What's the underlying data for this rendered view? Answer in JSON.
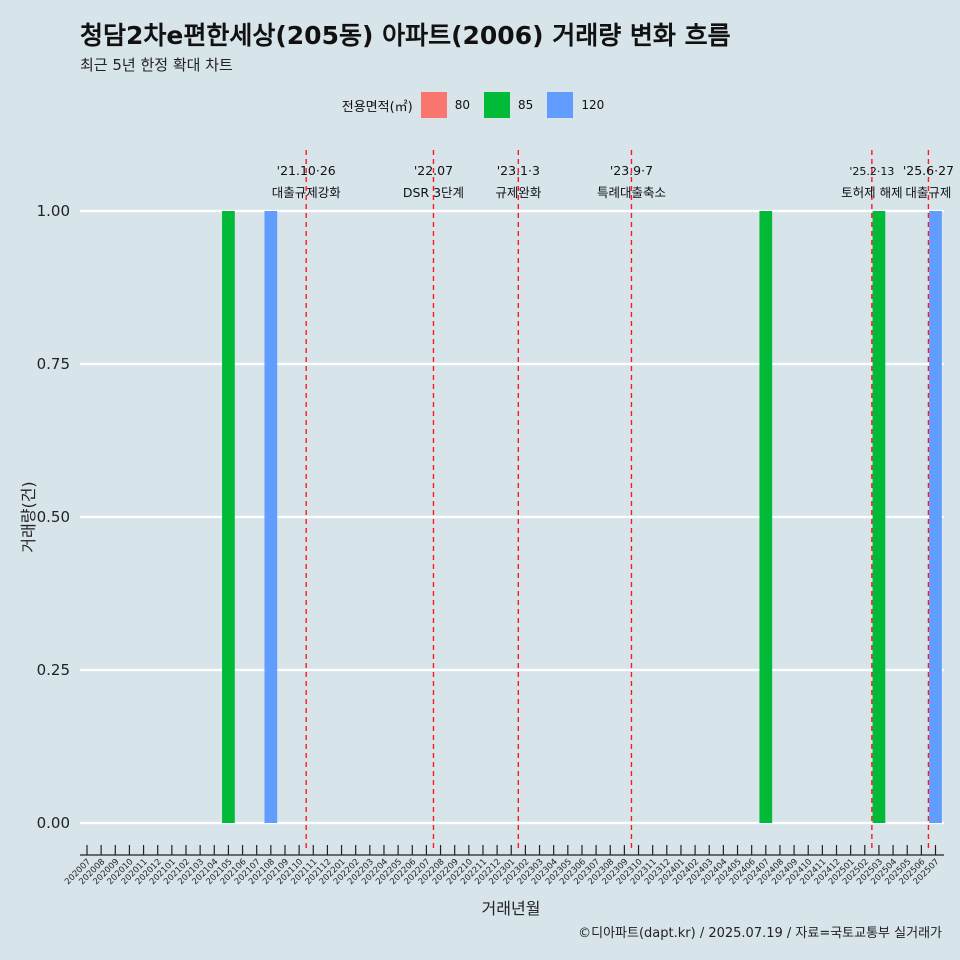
{
  "chart_data": {
    "type": "bar",
    "title": "청담2차e편한세상(205동) 아파트(2006) 거래량 변화 흐름",
    "subtitle": "최근 5년 한정 확대 차트",
    "xlabel": "거래년월",
    "ylabel": "거래량(건)",
    "ylim": [
      0,
      1
    ],
    "yticks": [
      "0.00",
      "0.25",
      "0.50",
      "0.75",
      "1.00"
    ],
    "legend": {
      "title": "전용면적(㎡)",
      "placement": "top",
      "entries": [
        {
          "label": "80",
          "color": "#f8766d"
        },
        {
          "label": "85",
          "color": "#00ba38"
        },
        {
          "label": "120",
          "color": "#619cff"
        }
      ]
    },
    "categories": [
      "202007",
      "202008",
      "202009",
      "202010",
      "202011",
      "202012",
      "202101",
      "202102",
      "202103",
      "202104",
      "202105",
      "202106",
      "202107",
      "202108",
      "202109",
      "202110",
      "202111",
      "202112",
      "202201",
      "202202",
      "202203",
      "202204",
      "202205",
      "202206",
      "202207",
      "202208",
      "202209",
      "202210",
      "202211",
      "202212",
      "202301",
      "202302",
      "202303",
      "202304",
      "202305",
      "202306",
      "202307",
      "202308",
      "202309",
      "202310",
      "202311",
      "202312",
      "202401",
      "202402",
      "202403",
      "202404",
      "202405",
      "202406",
      "202407",
      "202408",
      "202409",
      "202410",
      "202411",
      "202412",
      "202501",
      "202502",
      "202503",
      "202504",
      "202505",
      "202506",
      "202507"
    ],
    "bars": [
      {
        "month": "202105",
        "series": "85",
        "value": 1
      },
      {
        "month": "202108",
        "series": "120",
        "value": 1
      },
      {
        "month": "202407",
        "series": "85",
        "value": 1
      },
      {
        "month": "202503",
        "series": "85",
        "value": 1
      },
      {
        "month": "202507",
        "series": "120",
        "value": 1
      }
    ],
    "annotations": [
      {
        "date_label": "'21.10·26",
        "text": "대출규제강화",
        "month_pos": 15.5
      },
      {
        "date_label": "'22.07",
        "text": "DSR 3단계",
        "month_pos": 24.5
      },
      {
        "date_label": "'23.1·3",
        "text": "규제완화",
        "month_pos": 30.5
      },
      {
        "date_label": "'23.9·7",
        "text": "특례대출축소",
        "month_pos": 38.5
      },
      {
        "date_label": "'25.2·13",
        "text": "토허제 해제",
        "month_pos": 55.5
      },
      {
        "date_label": "'25.6·27",
        "text": "대출규제",
        "month_pos": 59.5
      }
    ]
  },
  "caption": "©디아파트(dapt.kr) / 2025.07.19 / 자료=국토교통부 실거래가"
}
